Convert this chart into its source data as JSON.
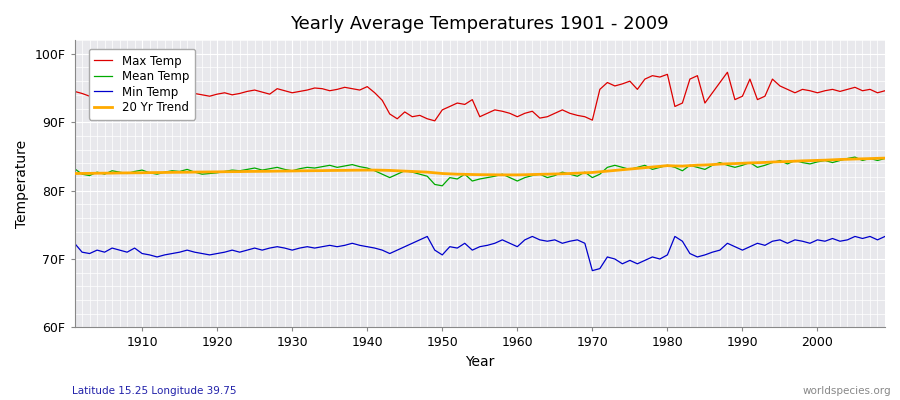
{
  "title": "Yearly Average Temperatures 1901 - 2009",
  "xlabel": "Year",
  "ylabel": "Temperature",
  "bottom_left": "Latitude 15.25 Longitude 39.75",
  "bottom_right": "worldspecies.org",
  "ylim": [
    60,
    102
  ],
  "yticks": [
    60,
    70,
    80,
    90,
    100
  ],
  "ytick_labels": [
    "60F",
    "70F",
    "80F",
    "90F",
    "100F"
  ],
  "xlim": [
    1901,
    2009
  ],
  "xticks": [
    1910,
    1920,
    1930,
    1940,
    1950,
    1960,
    1970,
    1980,
    1990,
    2000
  ],
  "fig_bg_color": "#ffffff",
  "plot_bg_color": "#e8e8ec",
  "grid_color": "#ffffff",
  "legend_entries": [
    "Max Temp",
    "Mean Temp",
    "Min Temp",
    "20 Yr Trend"
  ],
  "colors": {
    "max": "#dd0000",
    "mean": "#00aa00",
    "min": "#0000cc",
    "trend": "#ffaa00"
  },
  "years": [
    1901,
    1902,
    1903,
    1904,
    1905,
    1906,
    1907,
    1908,
    1909,
    1910,
    1911,
    1912,
    1913,
    1914,
    1915,
    1916,
    1917,
    1918,
    1919,
    1920,
    1921,
    1922,
    1923,
    1924,
    1925,
    1926,
    1927,
    1928,
    1929,
    1930,
    1931,
    1932,
    1933,
    1934,
    1935,
    1936,
    1937,
    1938,
    1939,
    1940,
    1941,
    1942,
    1943,
    1944,
    1945,
    1946,
    1947,
    1948,
    1949,
    1950,
    1951,
    1952,
    1953,
    1954,
    1955,
    1956,
    1957,
    1958,
    1959,
    1960,
    1961,
    1962,
    1963,
    1964,
    1965,
    1966,
    1967,
    1968,
    1969,
    1970,
    1971,
    1972,
    1973,
    1974,
    1975,
    1976,
    1977,
    1978,
    1979,
    1980,
    1981,
    1982,
    1983,
    1984,
    1985,
    1986,
    1987,
    1988,
    1989,
    1990,
    1991,
    1992,
    1993,
    1994,
    1995,
    1996,
    1997,
    1998,
    1999,
    2000,
    2001,
    2002,
    2003,
    2004,
    2005,
    2006,
    2007,
    2008,
    2009
  ],
  "max_temp": [
    94.5,
    94.2,
    93.8,
    94.5,
    94.0,
    94.8,
    94.5,
    94.9,
    94.4,
    94.6,
    94.0,
    93.8,
    94.5,
    94.7,
    94.9,
    94.6,
    94.2,
    94.0,
    93.8,
    94.1,
    94.3,
    94.0,
    94.2,
    94.5,
    94.7,
    94.4,
    94.1,
    94.9,
    94.6,
    94.3,
    94.5,
    94.7,
    95.0,
    94.9,
    94.6,
    94.8,
    95.1,
    94.9,
    94.7,
    95.2,
    94.3,
    93.2,
    91.2,
    90.5,
    91.5,
    90.8,
    91.0,
    90.5,
    90.2,
    91.8,
    92.3,
    92.8,
    92.6,
    93.3,
    90.8,
    91.3,
    91.8,
    91.6,
    91.3,
    90.8,
    91.3,
    91.6,
    90.6,
    90.8,
    91.3,
    91.8,
    91.3,
    91.0,
    90.8,
    90.3,
    94.8,
    95.8,
    95.3,
    95.6,
    96.0,
    94.8,
    96.3,
    96.8,
    96.6,
    97.0,
    92.3,
    92.8,
    96.3,
    96.8,
    92.8,
    94.3,
    95.8,
    97.3,
    93.3,
    93.8,
    96.3,
    93.3,
    93.8,
    96.3,
    95.3,
    94.8,
    94.3,
    94.8,
    94.6,
    94.3,
    94.6,
    94.8,
    94.5,
    94.8,
    95.1,
    94.6,
    94.8,
    94.3,
    94.6
  ],
  "mean_temp": [
    83.2,
    82.4,
    82.2,
    82.7,
    82.4,
    82.9,
    82.7,
    82.5,
    82.8,
    83.0,
    82.6,
    82.4,
    82.7,
    82.9,
    82.8,
    83.1,
    82.7,
    82.4,
    82.5,
    82.6,
    82.8,
    83.0,
    82.9,
    83.1,
    83.3,
    83.0,
    83.2,
    83.4,
    83.1,
    82.9,
    83.2,
    83.4,
    83.3,
    83.5,
    83.7,
    83.4,
    83.6,
    83.8,
    83.5,
    83.3,
    82.9,
    82.4,
    81.9,
    82.4,
    82.9,
    82.7,
    82.4,
    82.1,
    80.9,
    80.7,
    81.9,
    81.7,
    82.4,
    81.4,
    81.7,
    81.9,
    82.1,
    82.4,
    81.9,
    81.4,
    81.9,
    82.2,
    82.4,
    81.9,
    82.2,
    82.7,
    82.4,
    82.1,
    82.7,
    81.9,
    82.4,
    83.4,
    83.7,
    83.4,
    83.1,
    83.4,
    83.7,
    83.1,
    83.4,
    83.7,
    83.4,
    82.9,
    83.7,
    83.4,
    83.1,
    83.7,
    84.1,
    83.7,
    83.4,
    83.7,
    84.1,
    83.4,
    83.7,
    84.1,
    84.4,
    83.9,
    84.4,
    84.1,
    83.9,
    84.2,
    84.4,
    84.1,
    84.4,
    84.7,
    84.9,
    84.4,
    84.7,
    84.4,
    84.7
  ],
  "min_temp": [
    72.3,
    71.0,
    70.8,
    71.3,
    71.0,
    71.6,
    71.3,
    71.0,
    71.6,
    70.8,
    70.6,
    70.3,
    70.6,
    70.8,
    71.0,
    71.3,
    71.0,
    70.8,
    70.6,
    70.8,
    71.0,
    71.3,
    71.0,
    71.3,
    71.6,
    71.3,
    71.6,
    71.8,
    71.6,
    71.3,
    71.6,
    71.8,
    71.6,
    71.8,
    72.0,
    71.8,
    72.0,
    72.3,
    72.0,
    71.8,
    71.6,
    71.3,
    70.8,
    71.3,
    71.8,
    72.3,
    72.8,
    73.3,
    71.3,
    70.6,
    71.8,
    71.6,
    72.3,
    71.3,
    71.8,
    72.0,
    72.3,
    72.8,
    72.3,
    71.8,
    72.8,
    73.3,
    72.8,
    72.6,
    72.8,
    72.3,
    72.6,
    72.8,
    72.3,
    68.3,
    68.6,
    70.3,
    70.0,
    69.3,
    69.8,
    69.3,
    69.8,
    70.3,
    70.0,
    70.6,
    73.3,
    72.6,
    70.8,
    70.3,
    70.6,
    71.0,
    71.3,
    72.3,
    71.8,
    71.3,
    71.8,
    72.3,
    72.0,
    72.6,
    72.8,
    72.3,
    72.8,
    72.6,
    72.3,
    72.8,
    72.6,
    73.0,
    72.6,
    72.8,
    73.3,
    73.0,
    73.3,
    72.8,
    73.3
  ],
  "trend": [
    82.5,
    82.51,
    82.52,
    82.54,
    82.55,
    82.56,
    82.58,
    82.59,
    82.6,
    82.61,
    82.63,
    82.64,
    82.65,
    82.67,
    82.68,
    82.69,
    82.71,
    82.72,
    82.73,
    82.74,
    82.76,
    82.77,
    82.78,
    82.8,
    82.81,
    82.82,
    82.83,
    82.85,
    82.86,
    82.87,
    82.89,
    82.9,
    82.91,
    82.92,
    82.94,
    82.95,
    82.96,
    82.98,
    82.99,
    83.0,
    83.0,
    82.98,
    82.95,
    82.9,
    82.85,
    82.8,
    82.75,
    82.7,
    82.6,
    82.5,
    82.45,
    82.4,
    82.38,
    82.35,
    82.33,
    82.32,
    82.31,
    82.3,
    82.3,
    82.3,
    82.32,
    82.35,
    82.38,
    82.4,
    82.43,
    82.46,
    82.5,
    82.55,
    82.6,
    82.65,
    82.75,
    82.85,
    82.95,
    83.05,
    83.15,
    83.25,
    83.35,
    83.45,
    83.55,
    83.65,
    83.6,
    83.58,
    83.65,
    83.72,
    83.75,
    83.8,
    83.88,
    83.92,
    83.95,
    84.0,
    84.05,
    84.08,
    84.12,
    84.18,
    84.22,
    84.25,
    84.3,
    84.35,
    84.38,
    84.42,
    84.45,
    84.5,
    84.55,
    84.58,
    84.62,
    84.65,
    84.68,
    84.72,
    84.75
  ]
}
